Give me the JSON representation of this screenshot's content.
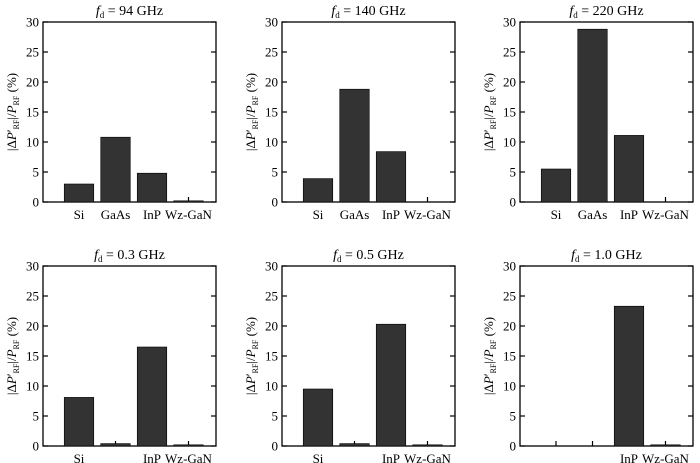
{
  "bar_color": "#333333",
  "ylabel": {
    "open_bar": "|Δ",
    "p": "P",
    "prime": "′",
    "rf_sub": "RF",
    "slash": "|/",
    "p2": "P",
    "rf_sub2": "RF",
    "unit": " (%)"
  },
  "chart_data": [
    {
      "type": "bar",
      "title_var": "f",
      "title_sub": "d",
      "title_value": " = 94 GHz",
      "categories": [
        "Si",
        "GaAs",
        "InP",
        "Wz-GaN"
      ],
      "values": [
        3.0,
        10.8,
        4.8,
        0.2
      ],
      "ylim": [
        0,
        30
      ],
      "yticks": [
        "0",
        "5",
        "10",
        "15",
        "20",
        "25",
        "30"
      ],
      "grid": false
    },
    {
      "type": "bar",
      "title_var": "f",
      "title_sub": "d",
      "title_value": " = 140 GHz",
      "categories": [
        "Si",
        "GaAs",
        "InP",
        "Wz-GaN"
      ],
      "values": [
        3.9,
        18.8,
        8.4,
        0.0
      ],
      "ylim": [
        0,
        30
      ],
      "yticks": [
        "0",
        "5",
        "10",
        "15",
        "20",
        "25",
        "30"
      ],
      "grid": false
    },
    {
      "type": "bar",
      "title_var": "f",
      "title_sub": "d",
      "title_value": " = 220 GHz",
      "categories": [
        "Si",
        "GaAs",
        "InP",
        "Wz-GaN"
      ],
      "values": [
        5.5,
        28.8,
        11.1,
        0.0
      ],
      "ylim": [
        0,
        30
      ],
      "yticks": [
        "0",
        "5",
        "10",
        "15",
        "20",
        "25",
        "30"
      ],
      "grid": false
    },
    {
      "type": "bar",
      "title_var": "f",
      "title_sub": "d",
      "title_value": " = 0.3 GHz",
      "categories": [
        "Si",
        "",
        "InP",
        "Wz-GaN"
      ],
      "values": [
        8.1,
        0.4,
        16.5,
        0.2
      ],
      "ylim": [
        0,
        30
      ],
      "yticks": [
        "0",
        "5",
        "10",
        "15",
        "20",
        "25",
        "30"
      ],
      "grid": false
    },
    {
      "type": "bar",
      "title_var": "f",
      "title_sub": "d",
      "title_value": " = 0.5 GHz",
      "categories": [
        "Si",
        "",
        "InP",
        "Wz-GaN"
      ],
      "values": [
        9.5,
        0.4,
        20.3,
        0.2
      ],
      "ylim": [
        0,
        30
      ],
      "yticks": [
        "0",
        "5",
        "10",
        "15",
        "20",
        "25",
        "30"
      ],
      "grid": false
    },
    {
      "type": "bar",
      "title_var": "f",
      "title_sub": "d",
      "title_value": " = 1.0 GHz",
      "categories": [
        "",
        "",
        "InP",
        "Wz-GaN"
      ],
      "values": [
        0.0,
        0.0,
        23.3,
        0.2
      ],
      "ylim": [
        0,
        30
      ],
      "yticks": [
        "0",
        "5",
        "10",
        "15",
        "20",
        "25",
        "30"
      ],
      "grid": false
    }
  ]
}
